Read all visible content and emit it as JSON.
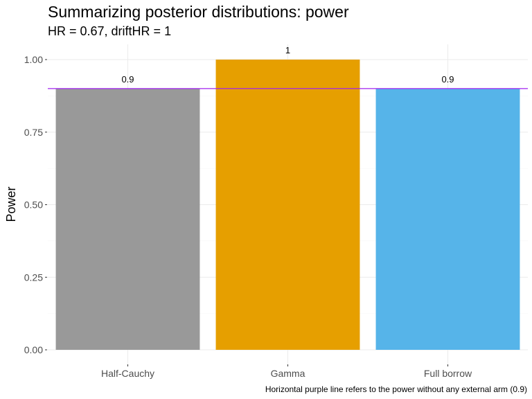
{
  "chart_data": {
    "type": "bar",
    "title": "Summarizing posterior distributions: power",
    "subtitle": "HR = 0.67, driftHR = 1",
    "xlabel": "",
    "ylabel": "Power",
    "categories": [
      "Half-Cauchy",
      "Gamma",
      "Full borrow"
    ],
    "values": [
      0.9,
      1,
      0.9
    ],
    "data_labels": [
      "0.9",
      "1",
      "0.9"
    ],
    "colors": [
      "#999999",
      "#E69F00",
      "#56B4E9"
    ],
    "ylim": [
      0,
      1
    ],
    "yticks": [
      0,
      0.25,
      0.5,
      0.75,
      1
    ],
    "ytick_labels": [
      "0.00",
      "0.25",
      "0.50",
      "0.75",
      "1.00"
    ],
    "reference_line": {
      "y": 0.9,
      "color": "#A020F0"
    },
    "caption": "Horizontal purple line refers to the power without any external arm (0.9)",
    "grid": true,
    "legend": "none"
  }
}
